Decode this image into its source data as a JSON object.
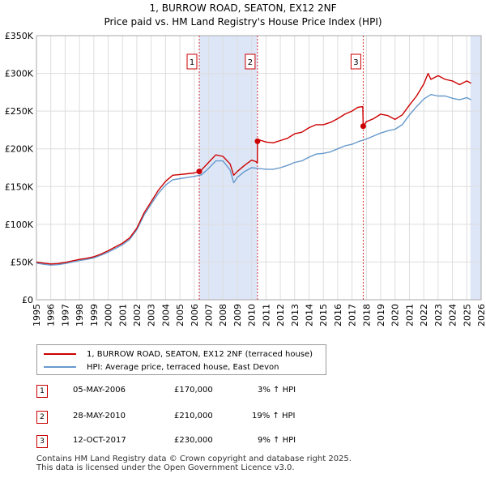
{
  "title": "1, BURROW ROAD, SEATON, EX12 2NF",
  "subtitle": "Price paid vs. HM Land Registry's House Price Index (HPI)",
  "colors": {
    "property": "#cc0000",
    "hpi": "#6699cc",
    "shade": "#dde6f7",
    "grid": "#dddddd"
  },
  "chart_data": {
    "type": "line",
    "title": "1, BURROW ROAD, SEATON, EX12 2NF",
    "xlabel": "",
    "ylabel": "",
    "xlim": [
      1995,
      2026
    ],
    "ylim": [
      0,
      350000
    ],
    "x_ticks": [
      1995,
      1996,
      1997,
      1998,
      1999,
      2000,
      2001,
      2002,
      2003,
      2004,
      2005,
      2006,
      2007,
      2008,
      2009,
      2010,
      2011,
      2012,
      2013,
      2014,
      2015,
      2016,
      2017,
      2018,
      2019,
      2020,
      2021,
      2022,
      2023,
      2024,
      2025,
      2026
    ],
    "y_ticks": [
      0,
      50000,
      100000,
      150000,
      200000,
      250000,
      300000,
      350000
    ],
    "y_tick_labels": [
      "£0",
      "£50K",
      "£100K",
      "£150K",
      "£200K",
      "£250K",
      "£300K",
      "£350K"
    ],
    "grid": true,
    "shaded_spans": [
      [
        2006.35,
        2010.4
      ],
      [
        2025.25,
        2026
      ]
    ],
    "series": [
      {
        "name": "1, BURROW ROAD, SEATON, EX12 2NF (terraced house)",
        "color": "#cc0000",
        "x": [
          1995.0,
          1995.5,
          1996.0,
          1996.5,
          1997.0,
          1997.5,
          1998.0,
          1998.5,
          1999.0,
          1999.5,
          2000.0,
          2000.5,
          2001.0,
          2001.5,
          2002.0,
          2002.5,
          2003.0,
          2003.5,
          2004.0,
          2004.5,
          2005.0,
          2005.5,
          2006.0,
          2006.35,
          2006.5,
          2007.0,
          2007.5,
          2008.0,
          2008.5,
          2008.75,
          2009.0,
          2009.5,
          2010.0,
          2010.3,
          2010.4,
          2010.41,
          2010.5,
          2011.0,
          2011.5,
          2012.0,
          2012.5,
          2013.0,
          2013.5,
          2014.0,
          2014.5,
          2015.0,
          2015.5,
          2016.0,
          2016.5,
          2017.0,
          2017.4,
          2017.75,
          2017.78,
          2018.0,
          2018.5,
          2019.0,
          2019.5,
          2020.0,
          2020.5,
          2021.0,
          2021.5,
          2022.0,
          2022.3,
          2022.5,
          2023.0,
          2023.5,
          2024.0,
          2024.5,
          2025.0,
          2025.3
        ],
        "y": [
          50000,
          48500,
          47500,
          48000,
          49500,
          51500,
          53500,
          55000,
          57000,
          60500,
          65000,
          70000,
          75000,
          82000,
          95000,
          115000,
          130000,
          145000,
          157000,
          165000,
          166000,
          167000,
          168000,
          170000,
          172000,
          182000,
          192000,
          190000,
          180000,
          165000,
          170000,
          178000,
          185000,
          183000,
          181000,
          210000,
          212000,
          209000,
          208000,
          211000,
          214000,
          220000,
          222000,
          228000,
          232000,
          232000,
          235000,
          240000,
          246000,
          250000,
          255000,
          256000,
          230000,
          236000,
          240000,
          246000,
          244000,
          239000,
          245000,
          258000,
          270000,
          286000,
          300000,
          292000,
          297000,
          292000,
          290000,
          285000,
          290000,
          287000
        ]
      },
      {
        "name": "HPI: Average price, terraced house, East Devon",
        "color": "#6699cc",
        "x": [
          1995.0,
          1995.5,
          1996.0,
          1996.5,
          1997.0,
          1997.5,
          1998.0,
          1998.5,
          1999.0,
          1999.5,
          2000.0,
          2000.5,
          2001.0,
          2001.5,
          2002.0,
          2002.5,
          2003.0,
          2003.5,
          2004.0,
          2004.5,
          2005.0,
          2005.5,
          2006.0,
          2006.5,
          2007.0,
          2007.5,
          2008.0,
          2008.5,
          2008.75,
          2009.0,
          2009.5,
          2010.0,
          2010.5,
          2011.0,
          2011.5,
          2012.0,
          2012.5,
          2013.0,
          2013.5,
          2014.0,
          2014.5,
          2015.0,
          2015.5,
          2016.0,
          2016.5,
          2017.0,
          2017.5,
          2018.0,
          2018.5,
          2019.0,
          2019.5,
          2020.0,
          2020.5,
          2021.0,
          2021.5,
          2022.0,
          2022.5,
          2023.0,
          2023.5,
          2024.0,
          2024.5,
          2025.0,
          2025.3
        ],
        "y": [
          48500,
          47000,
          46000,
          46500,
          48000,
          50000,
          52000,
          53500,
          55500,
          59000,
          63000,
          68000,
          73000,
          80000,
          93000,
          112000,
          127000,
          141000,
          152000,
          159000,
          160500,
          162000,
          163500,
          165500,
          174000,
          184000,
          184000,
          172000,
          155000,
          162000,
          170000,
          175000,
          174000,
          173000,
          173000,
          175000,
          178000,
          182000,
          184000,
          189000,
          193000,
          194000,
          196000,
          200000,
          204000,
          206000,
          210000,
          213000,
          217000,
          221000,
          224000,
          226000,
          232000,
          245000,
          256000,
          266000,
          272000,
          270000,
          270000,
          267000,
          265000,
          268000,
          265000
        ]
      }
    ],
    "sale_markers": [
      {
        "label": "1",
        "x": 2006.35,
        "y": 170000
      },
      {
        "label": "2",
        "x": 2010.41,
        "y": 210000
      },
      {
        "label": "3",
        "x": 2017.78,
        "y": 230000
      }
    ]
  },
  "legend": {
    "property_label": "1, BURROW ROAD, SEATON, EX12 2NF (terraced house)",
    "hpi_label": "HPI: Average price, terraced house, East Devon"
  },
  "transactions": [
    {
      "num": "1",
      "date": "05-MAY-2006",
      "price": "£170,000",
      "hpi": "3% ↑ HPI"
    },
    {
      "num": "2",
      "date": "28-MAY-2010",
      "price": "£210,000",
      "hpi": "19% ↑ HPI"
    },
    {
      "num": "3",
      "date": "12-OCT-2017",
      "price": "£230,000",
      "hpi": "9% ↑ HPI"
    }
  ],
  "footer": {
    "line1": "Contains HM Land Registry data © Crown copyright and database right 2025.",
    "line2": "This data is licensed under the Open Government Licence v3.0."
  }
}
